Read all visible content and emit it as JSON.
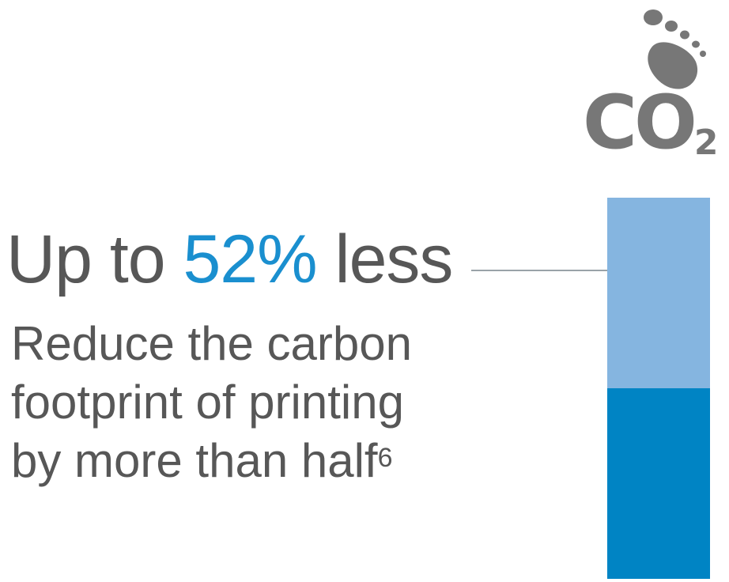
{
  "headline": {
    "prefix": "Up to ",
    "highlight": "52%",
    "suffix": " less"
  },
  "subtitle": {
    "line1": "Reduce the carbon",
    "line2": "footprint of printing",
    "line3": "by more than half",
    "footnote": "6"
  },
  "logo": {
    "icon": "footprint-icon",
    "text": "CO",
    "subscript": "2"
  },
  "colors": {
    "text": "#575757",
    "accent": "#1a8fcf",
    "bar_reduction": "#85b5e0",
    "bar_remaining": "#0084c4",
    "connector": "#9aa3a8",
    "logo": "#777777"
  }
}
